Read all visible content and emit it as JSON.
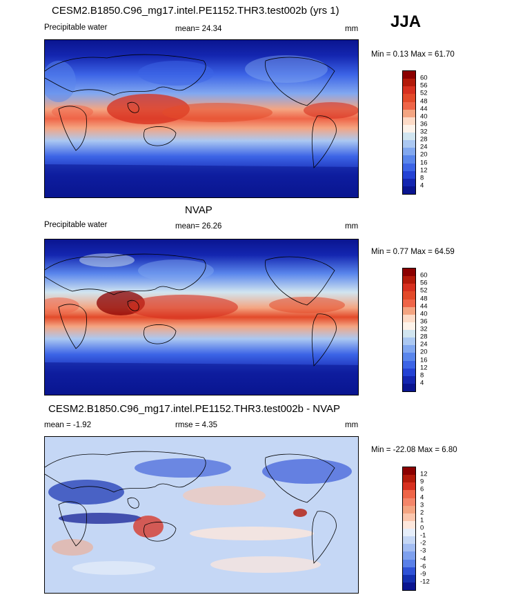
{
  "season": "JJA",
  "panels": [
    {
      "title": "CESM2.B1850.C96_mg17.intel.PE1152.THR3.test002b (yrs 1)",
      "variable": "Precipitable water",
      "stat": "mean=  24.34",
      "units": "mm",
      "minmax": "Min =   0.13 Max =  61.70",
      "levels": [
        "60",
        "56",
        "52",
        "48",
        "44",
        "40",
        "36",
        "32",
        "28",
        "24",
        "20",
        "16",
        "12",
        "8",
        "4"
      ],
      "colors": [
        "#8b0000",
        "#b31a0a",
        "#d7301f",
        "#e34a2a",
        "#ef6548",
        "#f4a582",
        "#fddbc7",
        "#fdf3ea",
        "#d1e5f0",
        "#abc8f2",
        "#82a8f0",
        "#5a86ec",
        "#3c64e6",
        "#2442d4",
        "#1426b0",
        "#0a1590"
      ]
    },
    {
      "title": "NVAP",
      "variable": "Precipitable water",
      "stat": "mean=  26.26",
      "units": "mm",
      "minmax": "Min =   0.77 Max =  64.59",
      "levels": [
        "60",
        "56",
        "52",
        "48",
        "44",
        "40",
        "36",
        "32",
        "28",
        "24",
        "20",
        "16",
        "12",
        "8",
        "4"
      ],
      "colors": [
        "#8b0000",
        "#b31a0a",
        "#d7301f",
        "#e34a2a",
        "#ef6548",
        "#f4a582",
        "#fddbc7",
        "#fdf3ea",
        "#d1e5f0",
        "#abc8f2",
        "#82a8f0",
        "#5a86ec",
        "#3c64e6",
        "#2442d4",
        "#1426b0",
        "#0a1590"
      ]
    },
    {
      "title": "CESM2.B1850.C96_mg17.intel.PE1152.THR3.test002b - NVAP",
      "variable": "mean =  -1.92",
      "stat": "rmse =   4.35",
      "units": "mm",
      "minmax": "Min = -22.08 Max =   6.80",
      "levels": [
        "12",
        "9",
        "6",
        "4",
        "3",
        "2",
        "1",
        "0",
        "-1",
        "-2",
        "-3",
        "-4",
        "-6",
        "-9",
        "-12"
      ],
      "colors": [
        "#8b0000",
        "#b31a0a",
        "#d7301f",
        "#ef6548",
        "#f4866a",
        "#f4a582",
        "#fbc6ad",
        "#fde7dc",
        "#e6eefa",
        "#c5d7f5",
        "#a3bdf2",
        "#7ea0ee",
        "#5a80e8",
        "#2f52d6",
        "#1430b0",
        "#0a1590"
      ]
    }
  ]
}
